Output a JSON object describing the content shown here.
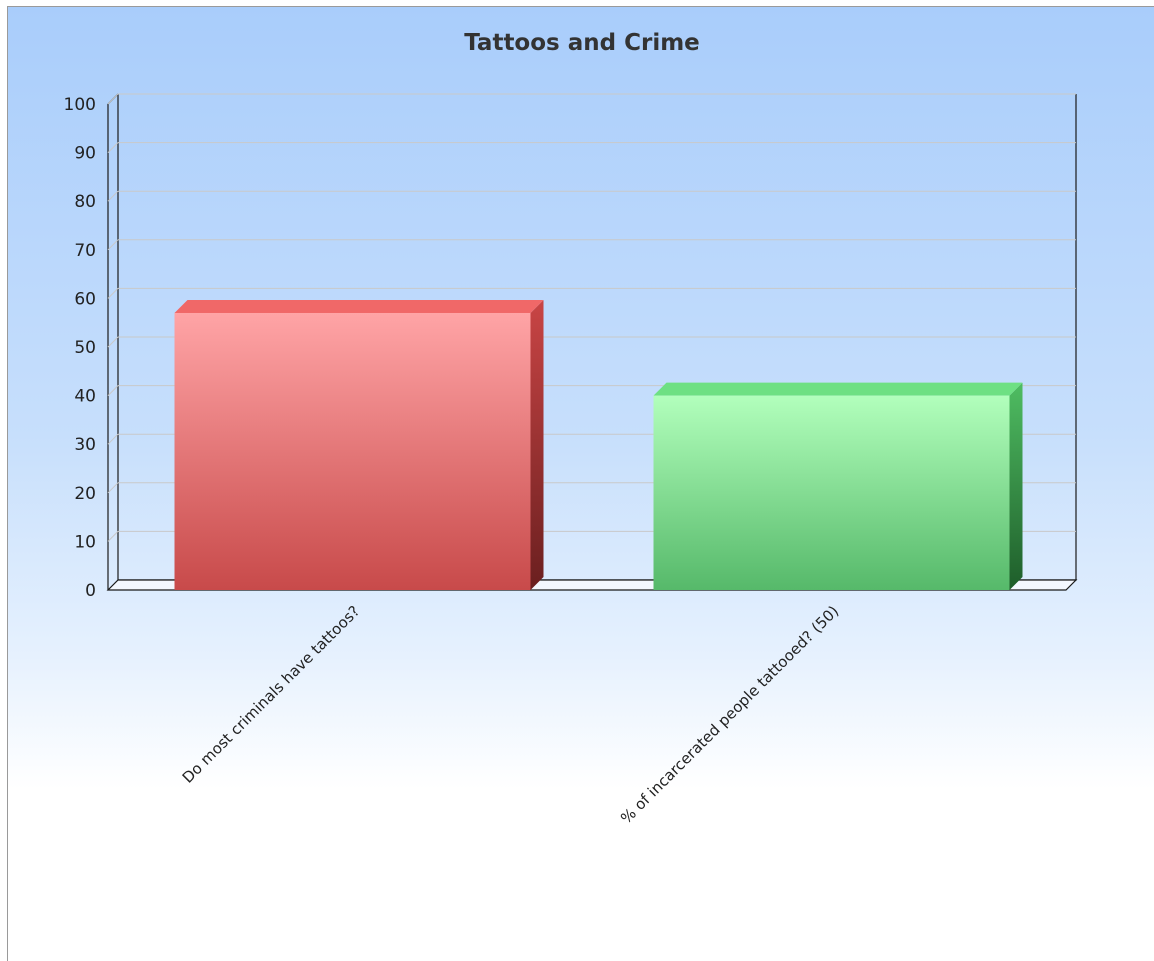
{
  "chart_data": {
    "type": "bar",
    "title": "Tattoos and Crime",
    "categories": [
      "Do most criminals have tattoos?",
      "% of incarcerated people tattooed? (50)"
    ],
    "values": [
      57,
      40
    ],
    "ylim": [
      0,
      100
    ],
    "yticks": [
      0,
      10,
      20,
      30,
      40,
      50,
      60,
      70,
      80,
      90,
      100
    ],
    "grid": true,
    "style": "3d",
    "colors": [
      "#e05a5a",
      "#6fd88a"
    ]
  }
}
